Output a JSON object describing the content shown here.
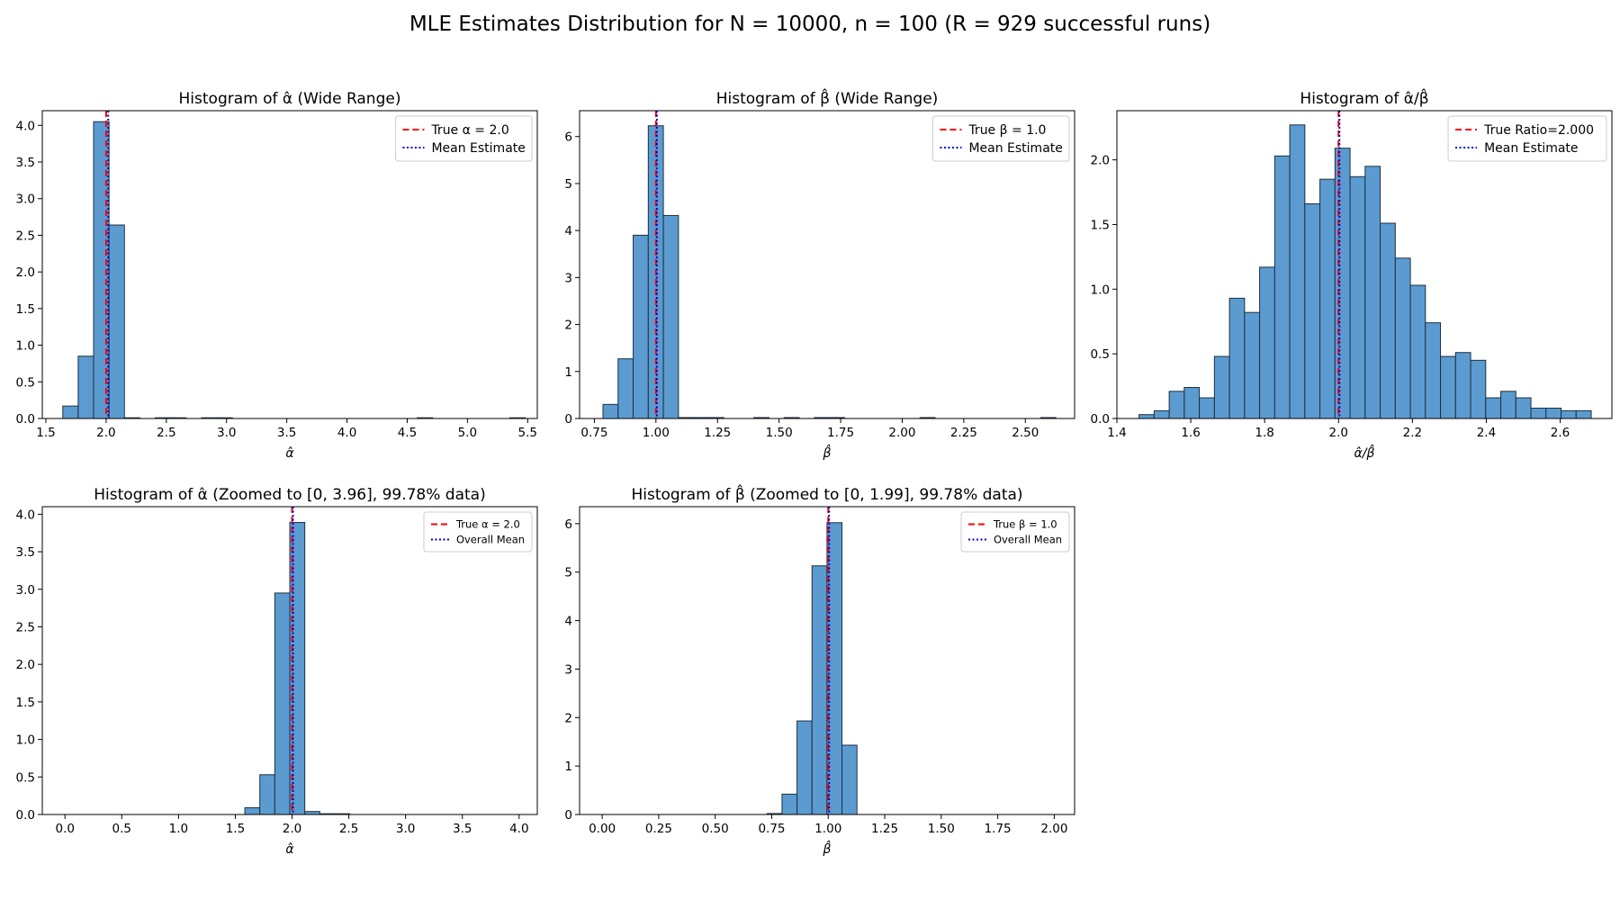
{
  "title": "MLE Estimates Distribution for N = 10000, n = 100 (R = 929 successful runs)",
  "style": {
    "bar_fill": "#5b9bd0",
    "bar_edge": "#1f2f3f",
    "true_line": "#ff0000",
    "mean_line": "#0000cc"
  },
  "chart_data": [
    {
      "type": "bar",
      "title": "Histogram of α̂ (Wide Range)",
      "xlabel": "α̂",
      "xlim": [
        1.47,
        5.58
      ],
      "ylim": [
        0,
        4.2
      ],
      "xticks": [
        1.5,
        2.0,
        2.5,
        3.0,
        3.5,
        4.0,
        4.5,
        5.0,
        5.5
      ],
      "xtick_labels": [
        "1.5",
        "2.0",
        "2.5",
        "3.0",
        "3.5",
        "4.0",
        "4.5",
        "5.0",
        "5.5"
      ],
      "yticks": [
        0,
        0.5,
        1.0,
        1.5,
        2.0,
        2.5,
        3.0,
        3.5,
        4.0
      ],
      "ytick_labels": [
        "0.0",
        "0.5",
        "1.0",
        "1.5",
        "2.0",
        "2.5",
        "3.0",
        "3.5",
        "4.0"
      ],
      "bin_start": 1.64,
      "bin_width": 0.128,
      "values": [
        0.17,
        0.85,
        4.05,
        2.64,
        0.01,
        0,
        0.01,
        0.01,
        0,
        0.01,
        0.01,
        0,
        0,
        0,
        0,
        0,
        0,
        0,
        0,
        0,
        0,
        0,
        0,
        0.01,
        0,
        0,
        0,
        0,
        0,
        0.01
      ],
      "true_value": 2.0,
      "mean_value": 2.01,
      "legend": [
        "True α = 2.0",
        "Mean Estimate"
      ],
      "legend_position": "upper right",
      "legend_size": "normal"
    },
    {
      "type": "bar",
      "title": "Histogram of β̂ (Wide Range)",
      "xlabel": "β̂",
      "xlim": [
        0.69,
        2.7
      ],
      "ylim": [
        0,
        6.55
      ],
      "xticks": [
        0.75,
        1.0,
        1.25,
        1.5,
        1.75,
        2.0,
        2.25,
        2.5
      ],
      "xtick_labels": [
        "0.75",
        "1.00",
        "1.25",
        "1.50",
        "1.75",
        "2.00",
        "2.25",
        "2.50"
      ],
      "yticks": [
        0,
        1,
        2,
        3,
        4,
        5,
        6
      ],
      "ytick_labels": [
        "0",
        "1",
        "2",
        "3",
        "4",
        "5",
        "6"
      ],
      "bin_start": 0.785,
      "bin_width": 0.0613,
      "values": [
        0.3,
        1.27,
        3.9,
        6.23,
        4.32,
        0.02,
        0.02,
        0.02,
        0,
        0,
        0.02,
        0,
        0.02,
        0,
        0.02,
        0.02,
        0,
        0,
        0,
        0,
        0,
        0.02,
        0,
        0,
        0,
        0,
        0,
        0,
        0,
        0.02
      ],
      "true_value": 1.0,
      "mean_value": 1.0,
      "legend": [
        "True β = 1.0",
        "Mean Estimate"
      ],
      "legend_position": "upper right",
      "legend_size": "normal"
    },
    {
      "type": "bar",
      "title": "Histogram of α̂/β̂",
      "xlabel": "α̂/β̂",
      "xlim": [
        1.4,
        2.74
      ],
      "ylim": [
        0,
        2.38
      ],
      "xticks": [
        1.4,
        1.6,
        1.8,
        2.0,
        2.2,
        2.4,
        2.6
      ],
      "xtick_labels": [
        "1.4",
        "1.6",
        "1.8",
        "2.0",
        "2.2",
        "2.4",
        "2.6"
      ],
      "yticks": [
        0,
        0.5,
        1.0,
        1.5,
        2.0
      ],
      "ytick_labels": [
        "0.0",
        "0.5",
        "1.0",
        "1.5",
        "2.0"
      ],
      "bin_start": 1.46,
      "bin_width": 0.0408,
      "values": [
        0.03,
        0.06,
        0.21,
        0.24,
        0.16,
        0.48,
        0.93,
        0.82,
        1.17,
        2.03,
        2.27,
        1.66,
        1.85,
        2.09,
        1.87,
        1.95,
        1.51,
        1.24,
        1.03,
        0.74,
        0.48,
        0.51,
        0.45,
        0.16,
        0.21,
        0.16,
        0.08,
        0.08,
        0.06,
        0.06
      ],
      "true_value": 2.0,
      "mean_value": 2.0,
      "legend": [
        "True Ratio=2.000",
        "Mean Estimate"
      ],
      "legend_position": "upper right",
      "legend_size": "normal"
    },
    {
      "type": "bar",
      "title": "Histogram of α̂ (Zoomed to [0, 3.96], 99.78% data)",
      "xlabel": "α̂",
      "xlim": [
        -0.2,
        4.16
      ],
      "ylim": [
        0,
        4.1
      ],
      "xticks": [
        0,
        0.5,
        1.0,
        1.5,
        2.0,
        2.5,
        3.0,
        3.5,
        4.0
      ],
      "xtick_labels": [
        "0.0",
        "0.5",
        "1.0",
        "1.5",
        "2.0",
        "2.5",
        "3.0",
        "3.5",
        "4.0"
      ],
      "yticks": [
        0,
        0.5,
        1.0,
        1.5,
        2.0,
        2.5,
        3.0,
        3.5,
        4.0
      ],
      "ytick_labels": [
        "0.0",
        "0.5",
        "1.0",
        "1.5",
        "2.0",
        "2.5",
        "3.0",
        "3.5",
        "4.0"
      ],
      "bin_start": 0,
      "bin_width": 0.132,
      "values": [
        0,
        0,
        0,
        0,
        0,
        0,
        0,
        0,
        0,
        0,
        0,
        0,
        0.09,
        0.53,
        2.95,
        3.89,
        0.04,
        0.01,
        0.01,
        0,
        0,
        0,
        0,
        0,
        0,
        0,
        0,
        0,
        0,
        0
      ],
      "true_value": 2.0,
      "mean_value": 2.0,
      "legend": [
        "True α = 2.0",
        "Overall Mean"
      ],
      "legend_position": "upper right",
      "legend_size": "small"
    },
    {
      "type": "bar",
      "title": "Histogram of β̂ (Zoomed to [0, 1.99], 99.78% data)",
      "xlabel": "β̂",
      "xlim": [
        -0.1,
        2.09
      ],
      "ylim": [
        0,
        6.35
      ],
      "xticks": [
        0,
        0.25,
        0.5,
        0.75,
        1.0,
        1.25,
        1.5,
        1.75,
        2.0
      ],
      "xtick_labels": [
        "0.00",
        "0.25",
        "0.50",
        "0.75",
        "1.00",
        "1.25",
        "1.50",
        "1.75",
        "2.00"
      ],
      "yticks": [
        0,
        1,
        2,
        3,
        4,
        5,
        6
      ],
      "ytick_labels": [
        "0",
        "1",
        "2",
        "3",
        "4",
        "5",
        "6"
      ],
      "bin_start": 0,
      "bin_width": 0.0663,
      "values": [
        0,
        0,
        0,
        0,
        0,
        0,
        0,
        0,
        0,
        0,
        0,
        0.02,
        0.42,
        1.93,
        5.13,
        6.02,
        1.43,
        0,
        0,
        0,
        0,
        0,
        0,
        0,
        0,
        0,
        0,
        0,
        0,
        0
      ],
      "true_value": 1.0,
      "mean_value": 1.0,
      "legend": [
        "True β = 1.0",
        "Overall Mean"
      ],
      "legend_position": "upper right",
      "legend_size": "small"
    }
  ]
}
